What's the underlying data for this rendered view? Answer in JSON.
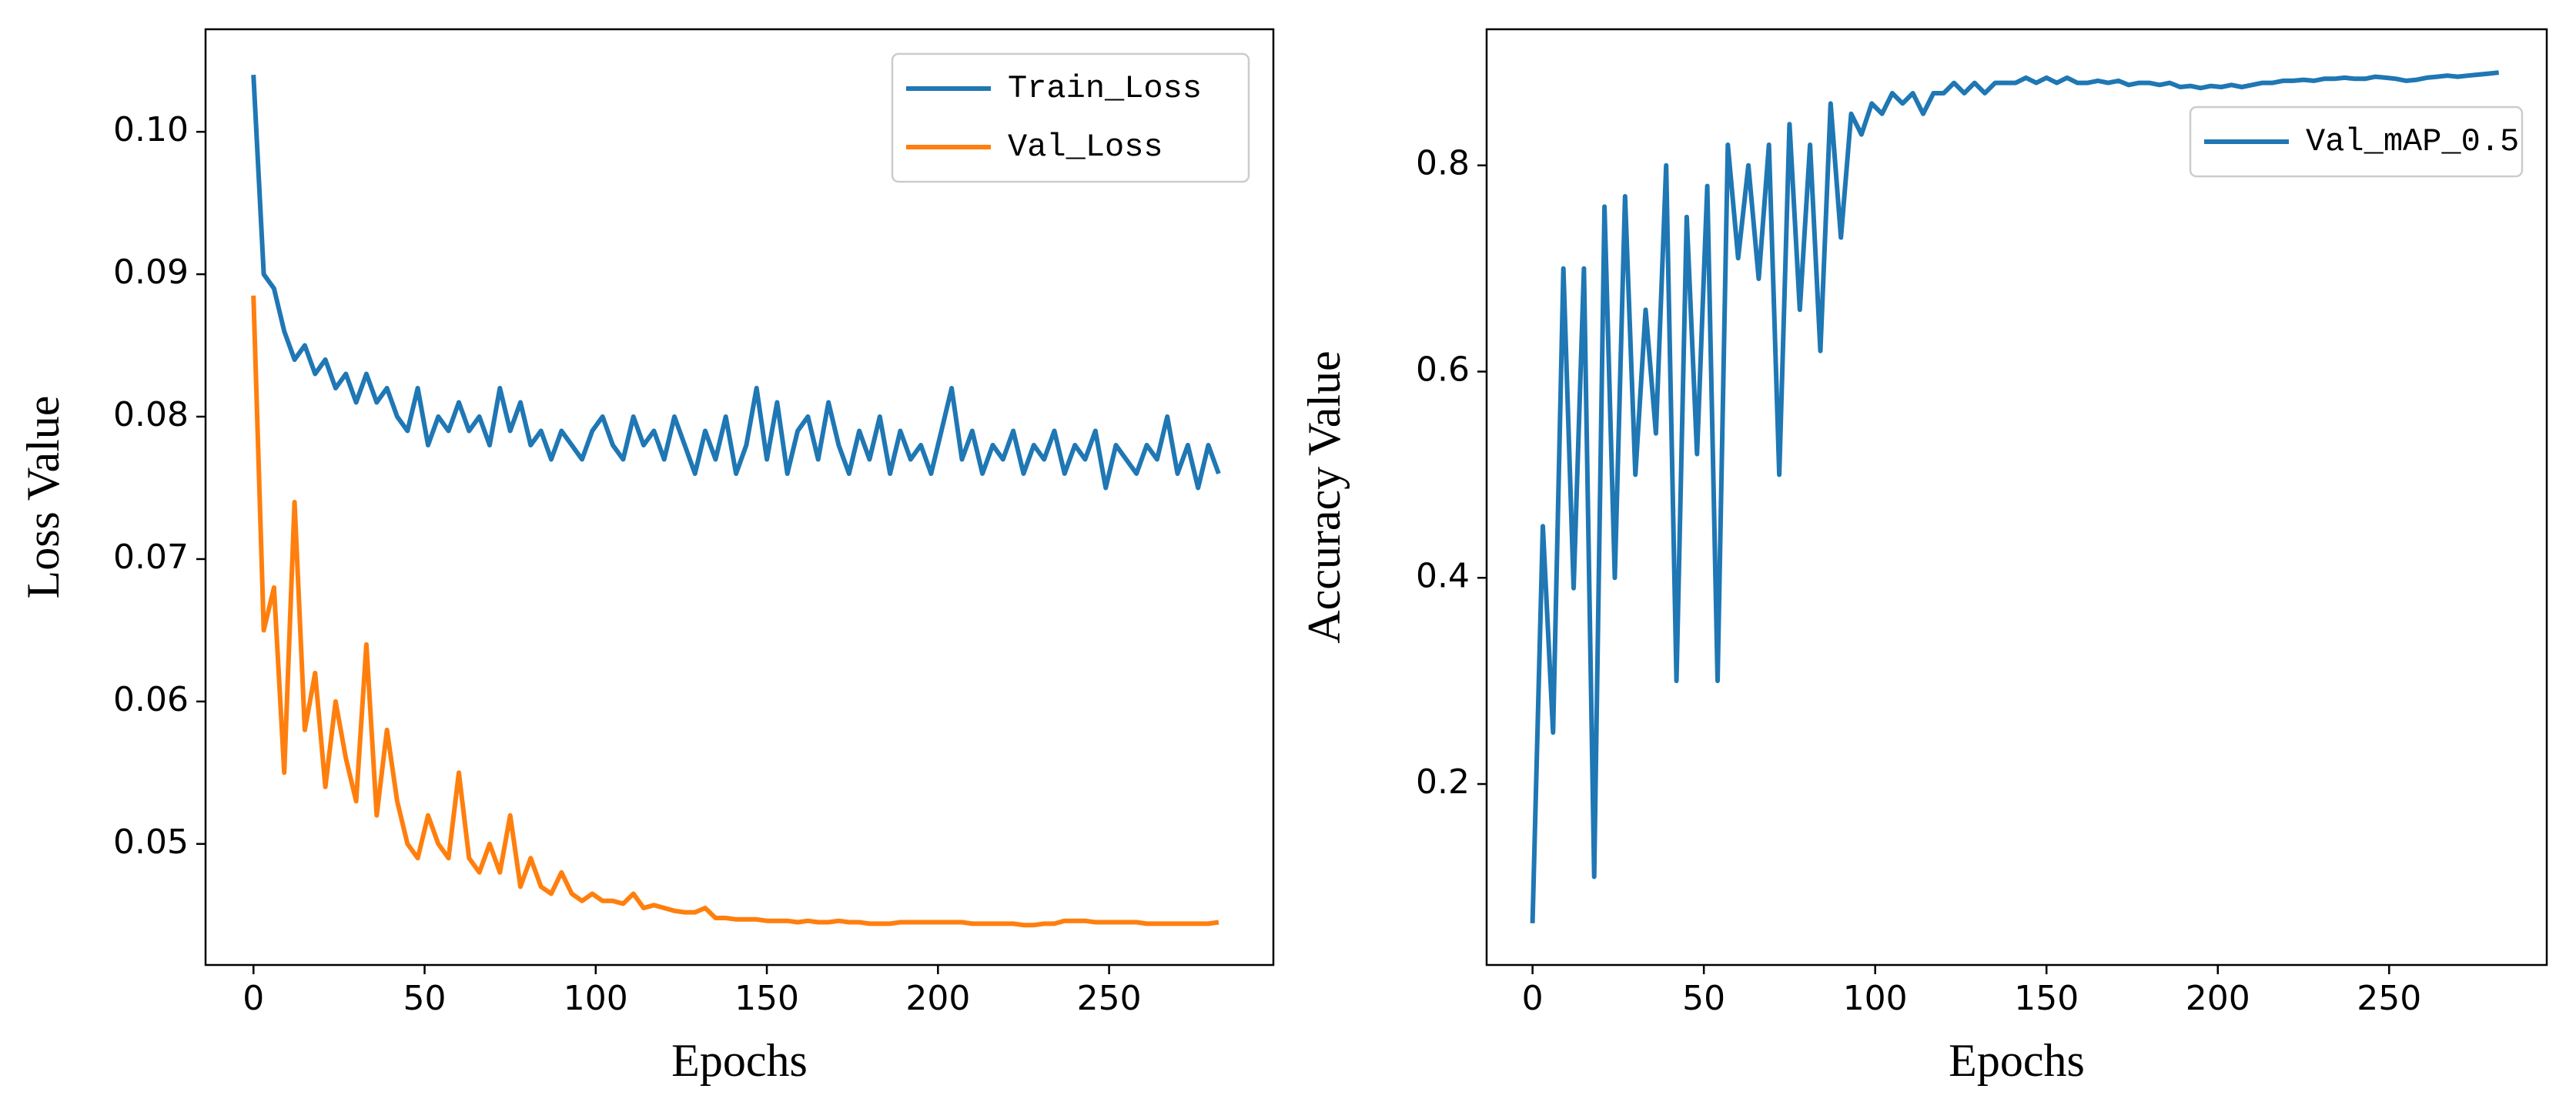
{
  "chart_data": [
    {
      "type": "line",
      "xlabel": "Epochs",
      "ylabel": "Loss Value",
      "xlim": [
        -14,
        298
      ],
      "ylim": [
        0.0415,
        0.1072
      ],
      "xticks": [
        0,
        50,
        100,
        150,
        200,
        250
      ],
      "yticks": [
        0.05,
        0.06,
        0.07,
        0.08,
        0.09,
        {
          "value": 0.1,
          "label": "0.10"
        }
      ],
      "legend": "upper right",
      "x": [
        0,
        3,
        6,
        9,
        12,
        15,
        18,
        21,
        24,
        27,
        30,
        33,
        36,
        39,
        42,
        45,
        48,
        51,
        54,
        57,
        60,
        63,
        66,
        69,
        72,
        75,
        78,
        81,
        84,
        87,
        90,
        93,
        96,
        99,
        102,
        105,
        108,
        111,
        114,
        117,
        120,
        123,
        126,
        129,
        132,
        135,
        138,
        141,
        144,
        147,
        150,
        153,
        156,
        159,
        162,
        165,
        168,
        171,
        174,
        177,
        180,
        183,
        186,
        189,
        192,
        195,
        198,
        201,
        204,
        207,
        210,
        213,
        216,
        219,
        222,
        225,
        228,
        231,
        234,
        237,
        240,
        243,
        246,
        249,
        252,
        255,
        258,
        261,
        264,
        267,
        270,
        273,
        276,
        279,
        282
      ],
      "series": [
        {
          "name": "Train_Loss",
          "color": "#1f77b4",
          "values": [
            0.104,
            0.09,
            0.089,
            0.086,
            0.084,
            0.085,
            0.083,
            0.084,
            0.082,
            0.083,
            0.081,
            0.083,
            0.081,
            0.082,
            0.08,
            0.079,
            0.082,
            0.078,
            0.08,
            0.079,
            0.081,
            0.079,
            0.08,
            0.078,
            0.082,
            0.079,
            0.081,
            0.078,
            0.079,
            0.077,
            0.079,
            0.078,
            0.077,
            0.079,
            0.08,
            0.078,
            0.077,
            0.08,
            0.078,
            0.079,
            0.077,
            0.08,
            0.078,
            0.076,
            0.079,
            0.077,
            0.08,
            0.076,
            0.078,
            0.082,
            0.077,
            0.081,
            0.076,
            0.079,
            0.08,
            0.077,
            0.081,
            0.078,
            0.076,
            0.079,
            0.077,
            0.08,
            0.076,
            0.079,
            0.077,
            0.078,
            0.076,
            0.079,
            0.082,
            0.077,
            0.079,
            0.076,
            0.078,
            0.077,
            0.079,
            0.076,
            0.078,
            0.077,
            0.079,
            0.076,
            0.078,
            0.077,
            0.079,
            0.075,
            0.078,
            0.077,
            0.076,
            0.078,
            0.077,
            0.08,
            0.076,
            0.078,
            0.075,
            0.078,
            0.076
          ]
        },
        {
          "name": "Val_Loss",
          "color": "#ff7f0e",
          "values": [
            0.0885,
            0.065,
            0.068,
            0.055,
            0.074,
            0.058,
            0.062,
            0.054,
            0.06,
            0.056,
            0.053,
            0.064,
            0.052,
            0.058,
            0.053,
            0.05,
            0.049,
            0.052,
            0.05,
            0.049,
            0.055,
            0.049,
            0.048,
            0.05,
            0.048,
            0.052,
            0.047,
            0.049,
            0.047,
            0.0465,
            0.048,
            0.0465,
            0.046,
            0.0465,
            0.046,
            0.046,
            0.0458,
            0.0465,
            0.0455,
            0.0457,
            0.0455,
            0.0453,
            0.0452,
            0.0452,
            0.0455,
            0.0448,
            0.0448,
            0.0447,
            0.0447,
            0.0447,
            0.0446,
            0.0446,
            0.0446,
            0.0445,
            0.0446,
            0.0445,
            0.0445,
            0.0446,
            0.0445,
            0.0445,
            0.0444,
            0.0444,
            0.0444,
            0.0445,
            0.0445,
            0.0445,
            0.0445,
            0.0445,
            0.0445,
            0.0445,
            0.0444,
            0.0444,
            0.0444,
            0.0444,
            0.0444,
            0.0443,
            0.0443,
            0.0444,
            0.0444,
            0.0446,
            0.0446,
            0.0446,
            0.0445,
            0.0445,
            0.0445,
            0.0445,
            0.0445,
            0.0444,
            0.0444,
            0.0444,
            0.0444,
            0.0444,
            0.0444,
            0.0444,
            0.0445
          ]
        }
      ]
    },
    {
      "type": "line",
      "xlabel": "Epochs",
      "ylabel": "Accuracy Value",
      "xlim": [
        -13.4,
        296
      ],
      "ylim": [
        0.0245,
        0.932
      ],
      "xticks": [
        0,
        50,
        100,
        150,
        200,
        250
      ],
      "yticks": [
        0.2,
        0.4,
        0.6,
        0.8
      ],
      "legend": "upper right",
      "x": [
        0,
        3,
        6,
        9,
        12,
        15,
        18,
        21,
        24,
        27,
        30,
        33,
        36,
        39,
        42,
        45,
        48,
        51,
        54,
        57,
        60,
        63,
        66,
        69,
        72,
        75,
        78,
        81,
        84,
        87,
        90,
        93,
        96,
        99,
        102,
        105,
        108,
        111,
        114,
        117,
        120,
        123,
        126,
        129,
        132,
        135,
        138,
        141,
        144,
        147,
        150,
        153,
        156,
        159,
        162,
        165,
        168,
        171,
        174,
        177,
        180,
        183,
        186,
        189,
        192,
        195,
        198,
        201,
        204,
        207,
        210,
        213,
        216,
        219,
        222,
        225,
        228,
        231,
        234,
        237,
        240,
        243,
        246,
        249,
        252,
        255,
        258,
        261,
        264,
        267,
        270,
        273,
        276,
        279,
        282
      ],
      "series": [
        {
          "name": "Val_mAP_0.5",
          "color": "#1f77b4",
          "values": [
            0.065,
            0.45,
            0.25,
            0.7,
            0.39,
            0.7,
            0.11,
            0.76,
            0.4,
            0.77,
            0.5,
            0.66,
            0.54,
            0.8,
            0.3,
            0.75,
            0.52,
            0.78,
            0.3,
            0.82,
            0.71,
            0.8,
            0.69,
            0.82,
            0.5,
            0.84,
            0.66,
            0.82,
            0.62,
            0.86,
            0.73,
            0.85,
            0.83,
            0.86,
            0.85,
            0.87,
            0.86,
            0.87,
            0.85,
            0.87,
            0.87,
            0.88,
            0.87,
            0.88,
            0.87,
            0.88,
            0.88,
            0.88,
            0.885,
            0.88,
            0.885,
            0.88,
            0.885,
            0.88,
            0.88,
            0.882,
            0.88,
            0.882,
            0.878,
            0.88,
            0.88,
            0.878,
            0.88,
            0.876,
            0.877,
            0.875,
            0.877,
            0.876,
            0.878,
            0.876,
            0.878,
            0.88,
            0.88,
            0.882,
            0.882,
            0.883,
            0.882,
            0.884,
            0.884,
            0.885,
            0.884,
            0.884,
            0.886,
            0.885,
            0.884,
            0.882,
            0.883,
            0.885,
            0.886,
            0.887,
            0.886,
            0.887,
            0.888,
            0.889,
            0.89
          ]
        }
      ]
    }
  ]
}
